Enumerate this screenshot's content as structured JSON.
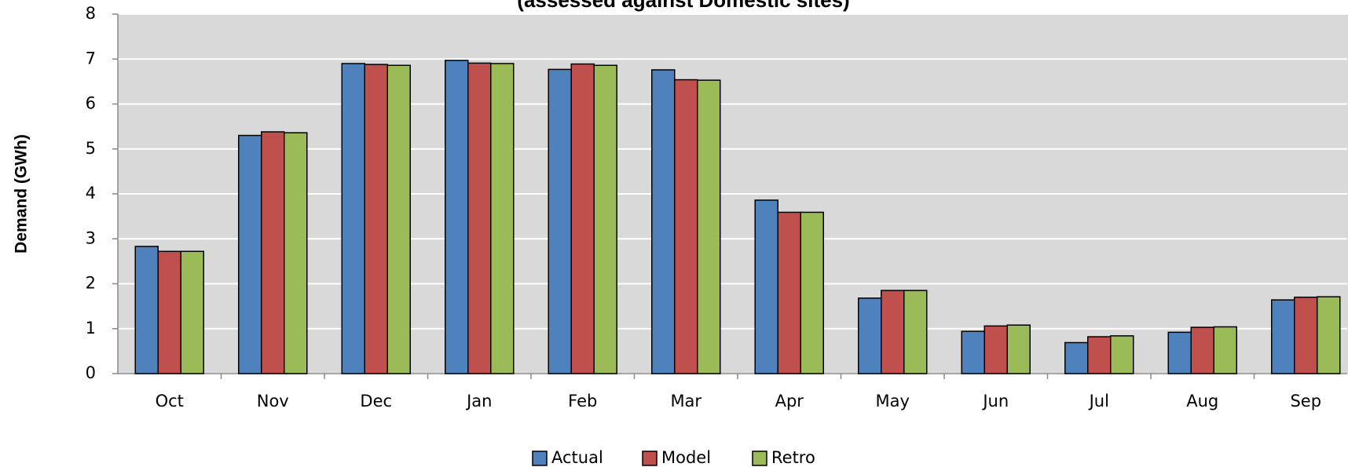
{
  "chart_data": {
    "type": "bar",
    "title": "(assessed against Domestic sites)",
    "y_label": "Demand (GWh)",
    "categories": [
      "Oct",
      "Nov",
      "Dec",
      "Jan",
      "Feb",
      "Mar",
      "Apr",
      "May",
      "Jun",
      "Jul",
      "Aug",
      "Sep"
    ],
    "series": [
      {
        "name": "Actual",
        "color": "#4f81bd",
        "values": [
          2.83,
          5.3,
          6.9,
          6.97,
          6.77,
          6.76,
          3.86,
          1.68,
          0.94,
          0.69,
          0.92,
          1.64
        ]
      },
      {
        "name": "Model",
        "color": "#c0504d",
        "values": [
          2.72,
          5.38,
          6.88,
          6.91,
          6.89,
          6.54,
          3.59,
          1.85,
          1.06,
          0.82,
          1.03,
          1.7
        ]
      },
      {
        "name": "Retro",
        "color": "#9bbb59",
        "values": [
          2.72,
          5.36,
          6.86,
          6.9,
          6.86,
          6.53,
          3.59,
          1.85,
          1.08,
          0.84,
          1.04,
          1.71
        ]
      }
    ],
    "ylim": [
      0,
      8
    ],
    "yticks": [
      0,
      1,
      2,
      3,
      4,
      5,
      6,
      7,
      8
    ],
    "grid": true,
    "legend": "bottom"
  }
}
